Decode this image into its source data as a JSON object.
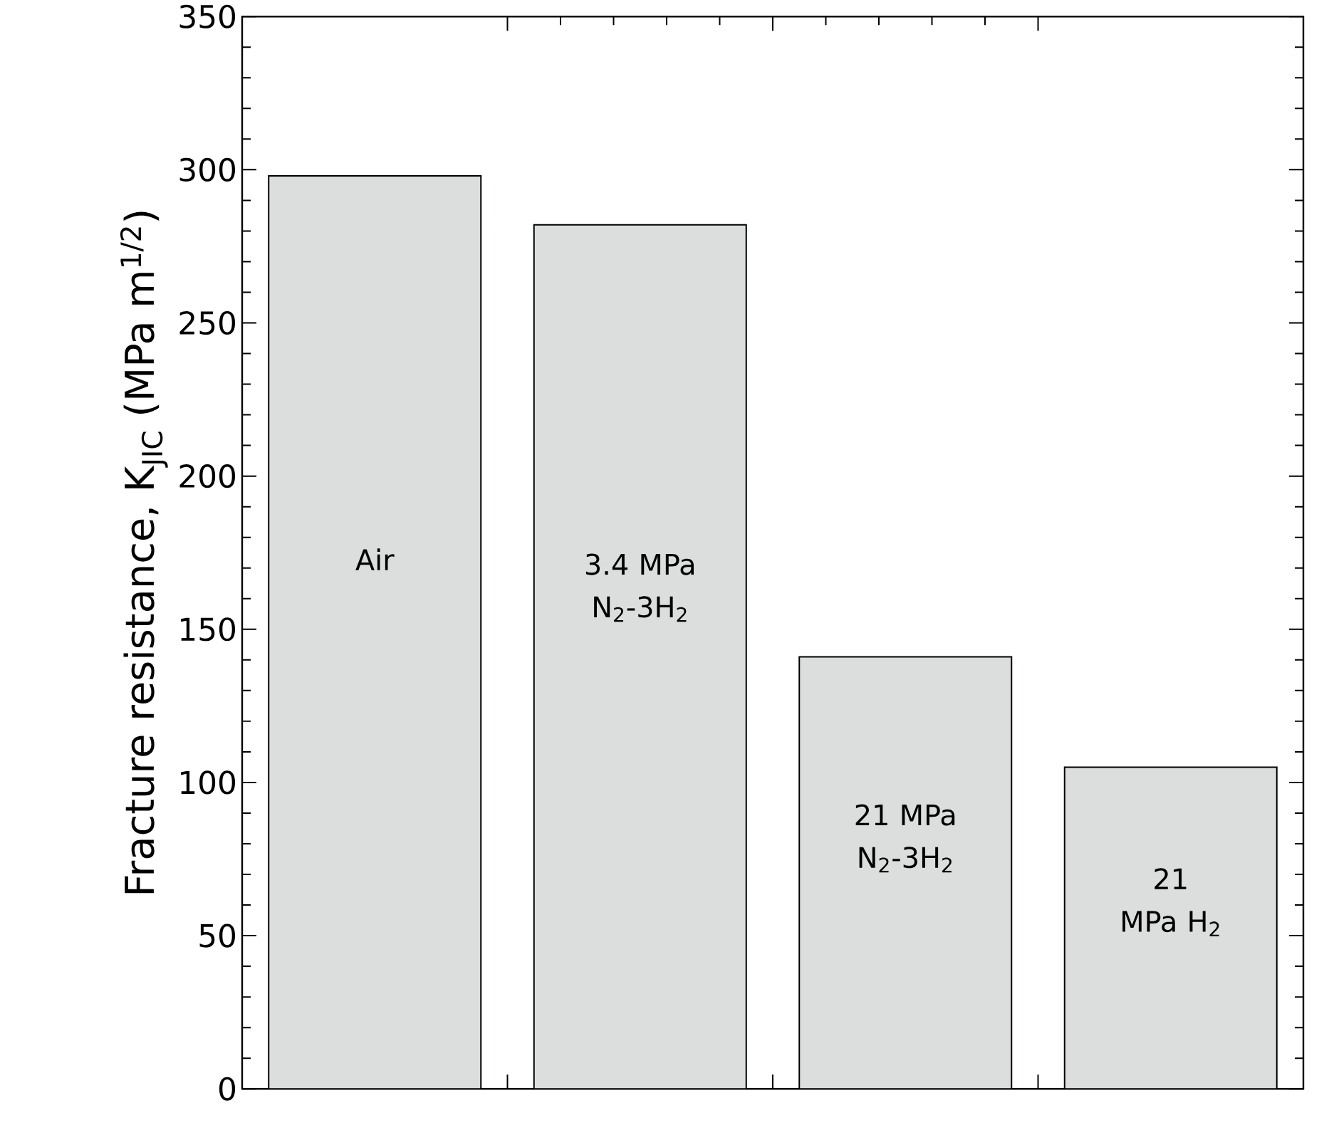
{
  "chart_data": {
    "type": "bar",
    "ylabel": "Fracture resistance, K$_{JIC}$  (MPa m$^{1/2}$)",
    "categories": [
      "Air",
      "3.4 MPa N$_{2}$-3H$_{2}$",
      "21 MPa N$_{2}$-3H$_{2}$",
      "21 MPa H$_{2}$"
    ],
    "values": [
      298,
      282,
      141,
      105
    ],
    "color": "#dcdddd",
    "ylim": [
      0,
      350
    ],
    "yticks": [
      0,
      50,
      100,
      150,
      200,
      250,
      300,
      350
    ]
  }
}
